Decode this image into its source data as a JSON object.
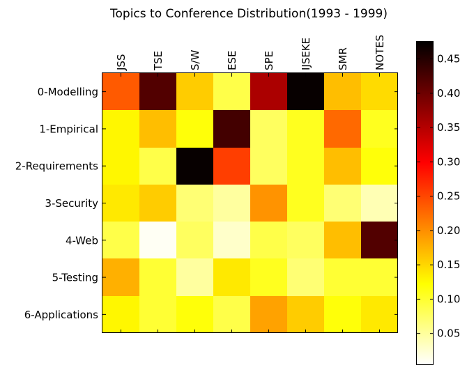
{
  "chart_data": {
    "type": "heatmap",
    "title": "Topics to Conference Distribution(1993 - 1999)",
    "columns": [
      "JSS",
      "TSE",
      "S/W",
      "ESE",
      "SPE",
      "IJSEKE",
      "SMR",
      "NOTES"
    ],
    "rows": [
      "0-Modelling",
      "1-Empirical",
      "2-Requirements",
      "3-Security",
      "4-Web",
      "5-Testing",
      "6-Applications"
    ],
    "values": [
      [
        0.24,
        0.42,
        0.16,
        0.09,
        0.36,
        0.47,
        0.17,
        0.15
      ],
      [
        0.13,
        0.17,
        0.12,
        0.43,
        0.08,
        0.11,
        0.23,
        0.11
      ],
      [
        0.13,
        0.09,
        0.47,
        0.26,
        0.08,
        0.11,
        0.17,
        0.12
      ],
      [
        0.14,
        0.16,
        0.07,
        0.05,
        0.2,
        0.11,
        0.07,
        0.04
      ],
      [
        0.09,
        0.01,
        0.08,
        0.03,
        0.09,
        0.08,
        0.17,
        0.42
      ],
      [
        0.18,
        0.1,
        0.05,
        0.14,
        0.11,
        0.07,
        0.1,
        0.1
      ],
      [
        0.13,
        0.1,
        0.12,
        0.09,
        0.19,
        0.16,
        0.12,
        0.14
      ]
    ],
    "colorbar": {
      "ticks": [
        "0.05",
        "0.10",
        "0.15",
        "0.20",
        "0.25",
        "0.30",
        "0.35",
        "0.40",
        "0.45"
      ],
      "range": [
        0.005,
        0.475
      ],
      "colormap": "hot_r"
    },
    "grid": false
  }
}
